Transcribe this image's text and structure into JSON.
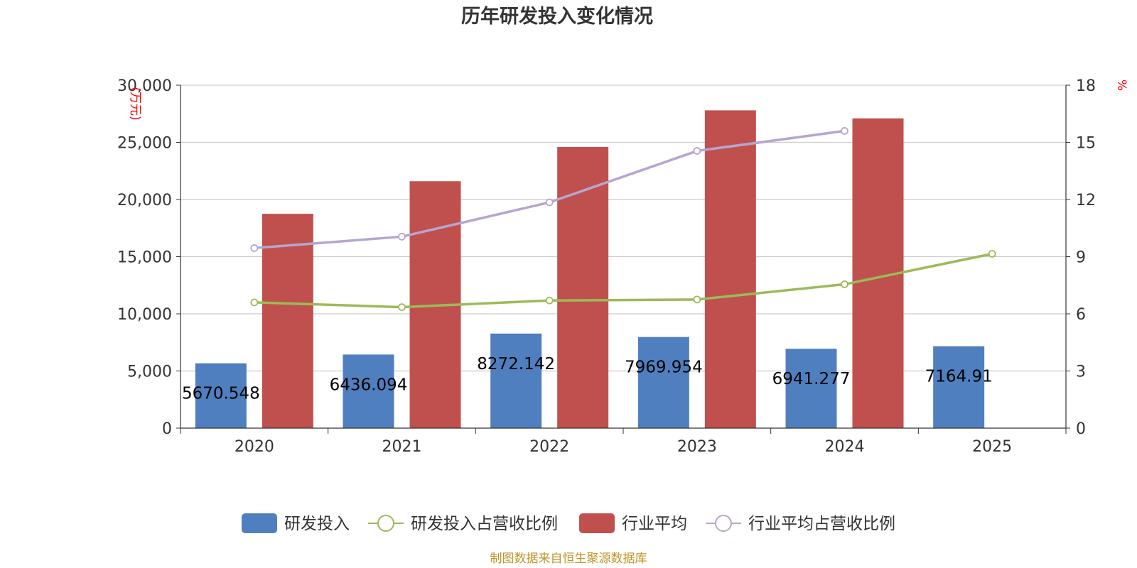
{
  "chart_data": {
    "type": "bar",
    "title": "历年研发投入变化情况",
    "categories": [
      "2020",
      "2021",
      "2022",
      "2023",
      "2024",
      "2025"
    ],
    "y_left": {
      "unit": "(万元)",
      "ylim": [
        0,
        30000
      ],
      "ticks": [
        "0",
        "5,000",
        "10,000",
        "15,000",
        "20,000",
        "25,000",
        "30,000"
      ]
    },
    "y_right": {
      "unit": "%",
      "ylim": [
        0,
        18
      ],
      "ticks": [
        "0",
        "3",
        "6",
        "9",
        "12",
        "15",
        "18"
      ]
    },
    "series": [
      {
        "name": "研发投入",
        "type": "bar",
        "axis": "left",
        "color": "#4f7fbf",
        "values": [
          5670.548,
          6436.094,
          8272.142,
          7969.954,
          6941.277,
          7164.91
        ],
        "labels": [
          "5670.548",
          "6436.094",
          "8272.142",
          "7969.954",
          "6941.277",
          "7164.91"
        ]
      },
      {
        "name": "研发投入占营收比例",
        "type": "line",
        "axis": "right",
        "color": "#9bbb59",
        "values": [
          6.6,
          6.35,
          6.7,
          6.75,
          7.55,
          9.15
        ]
      },
      {
        "name": "行业平均",
        "type": "bar",
        "axis": "left",
        "color": "#c0504d",
        "values": [
          18750,
          21600,
          24600,
          27800,
          27100,
          null
        ]
      },
      {
        "name": "行业平均占营收比例",
        "type": "line",
        "axis": "right",
        "color": "#b5a6cf",
        "values": [
          9.45,
          10.05,
          11.85,
          14.55,
          15.6,
          null
        ]
      }
    ],
    "grid": true,
    "legend_position": "bottom"
  },
  "footer": {
    "source": "制图数据来自恒生聚源数据库"
  }
}
